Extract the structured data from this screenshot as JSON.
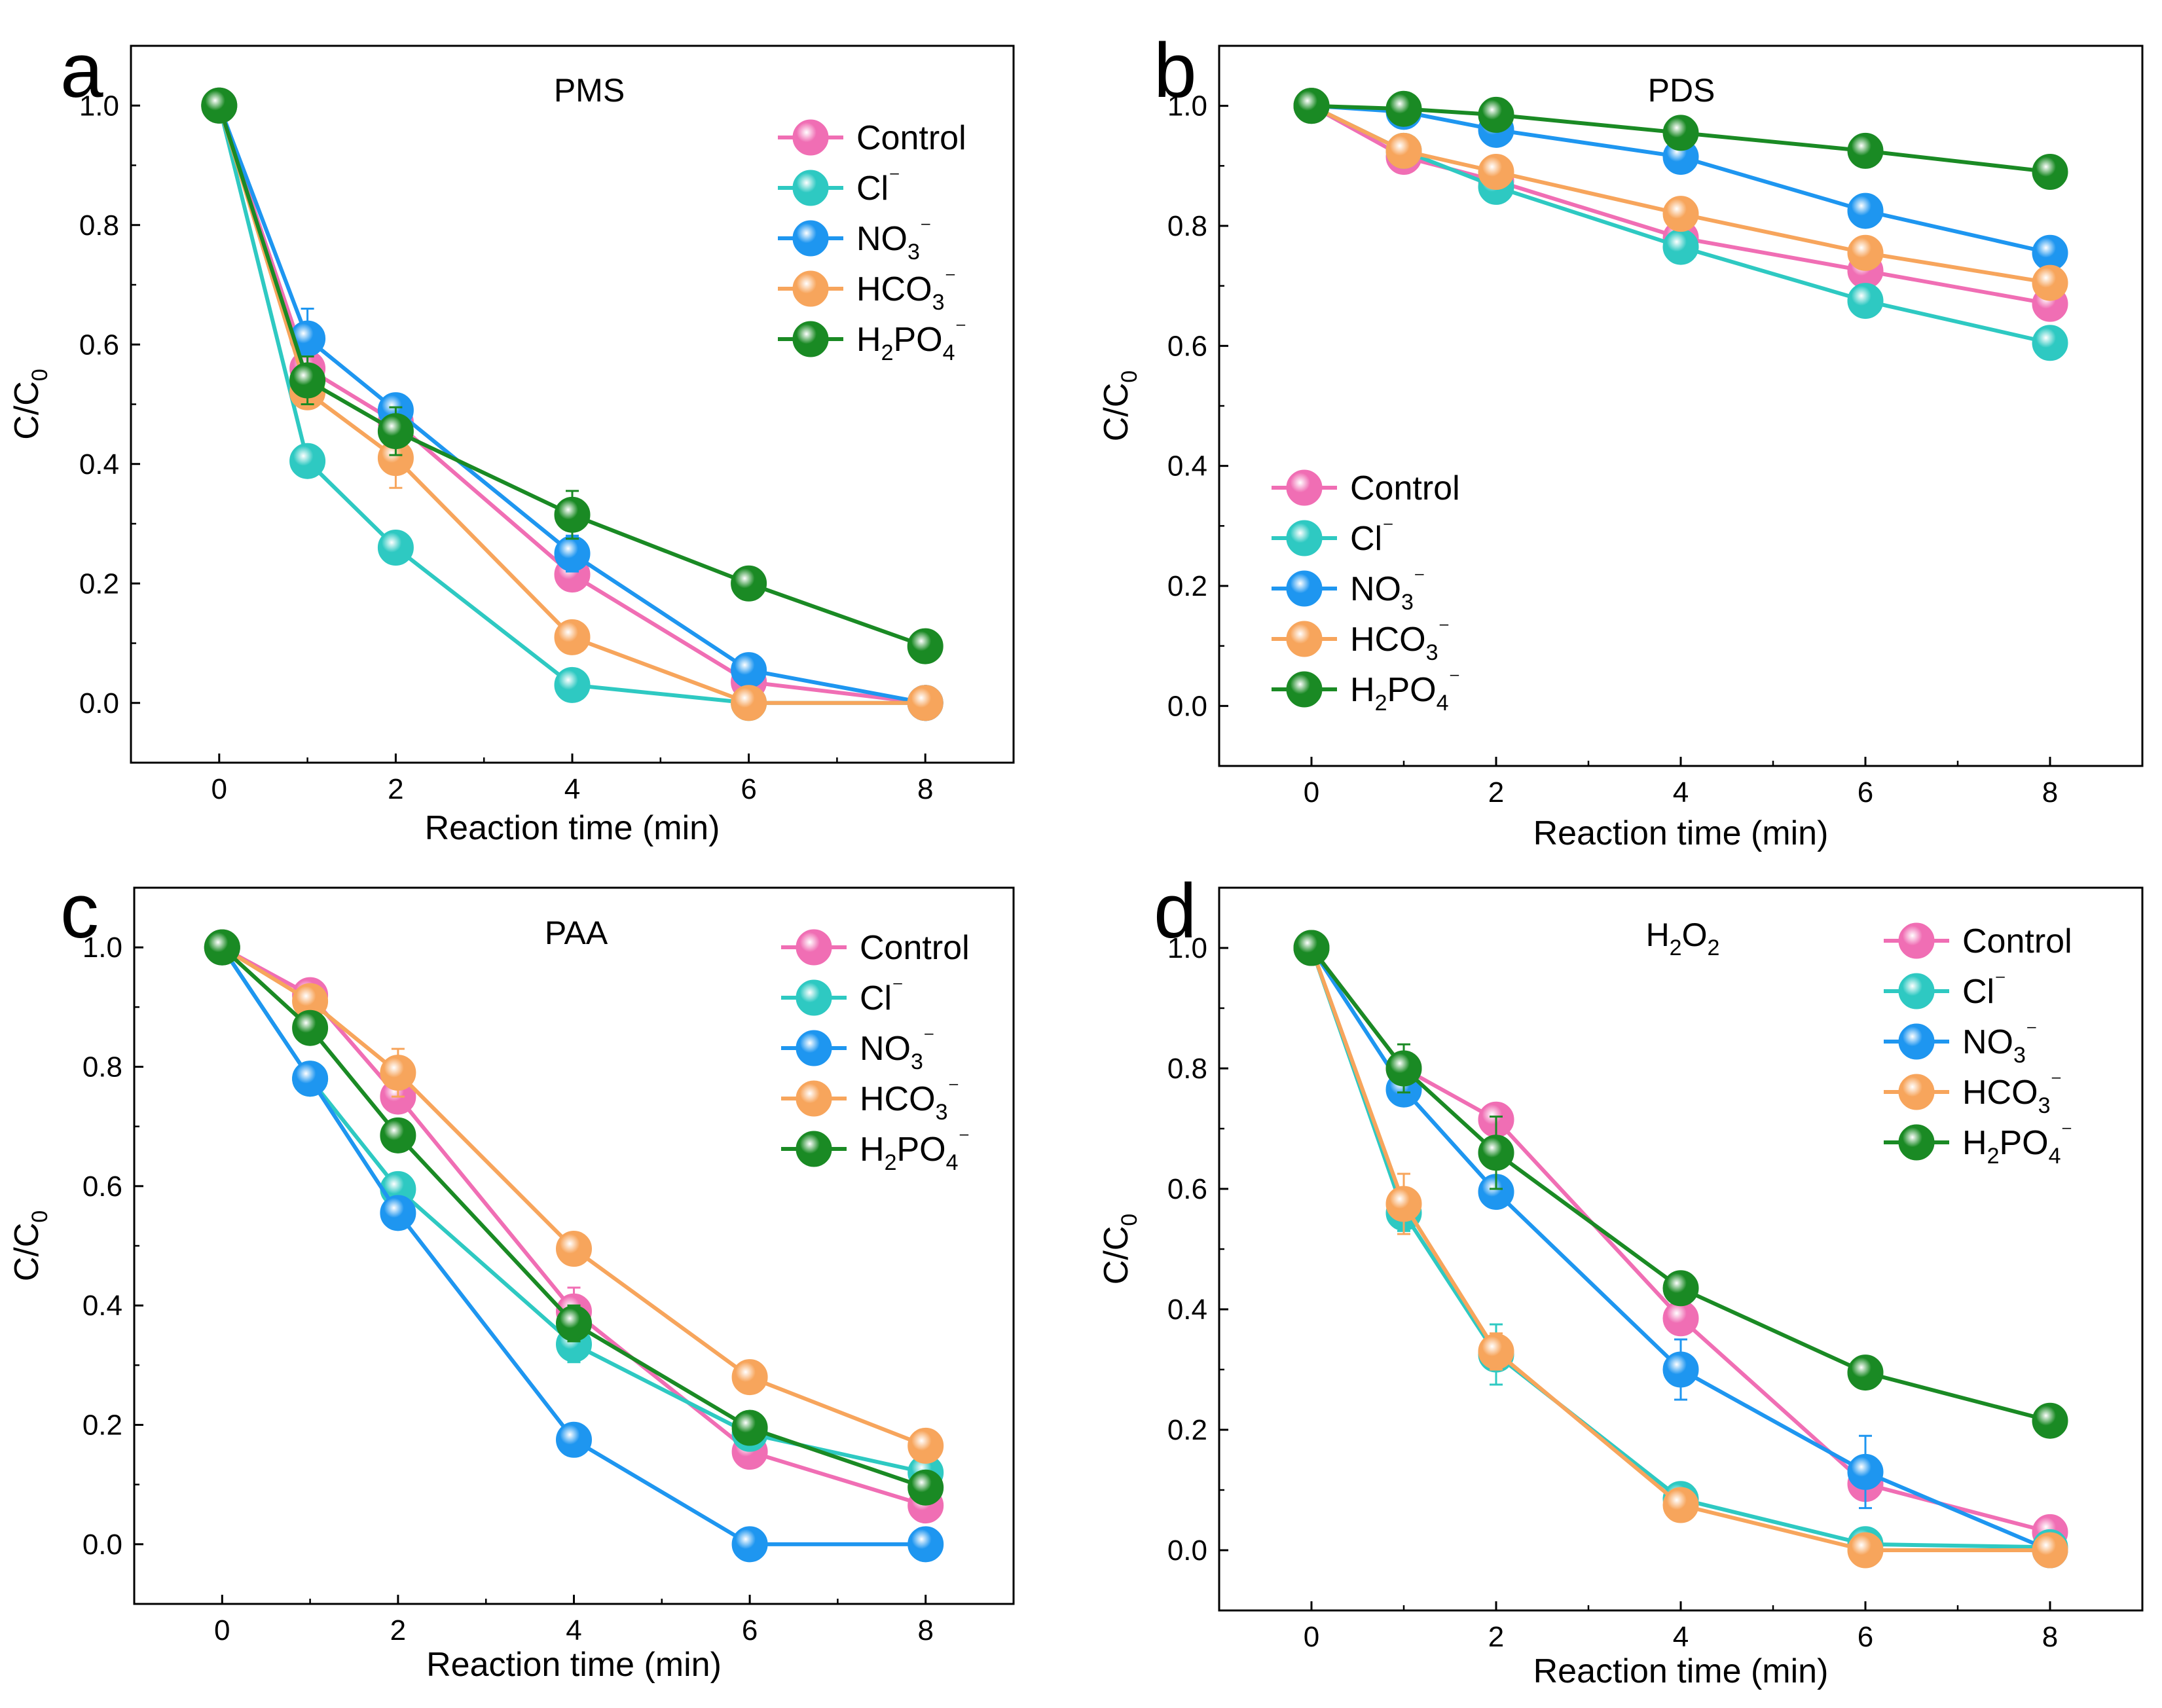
{
  "chart_data": [
    {
      "type": "line",
      "panel": "a",
      "title": "PMS",
      "xlabel": "Reaction time (min)",
      "ylabel": "C/C0",
      "ylabel_parts": [
        "C/C",
        "0"
      ],
      "xlim": [
        -1,
        9
      ],
      "ylim": [
        -0.1,
        1.1
      ],
      "xticks": [
        0,
        2,
        4,
        6,
        8
      ],
      "yticks": [
        0.0,
        0.2,
        0.4,
        0.6,
        0.8,
        1.0
      ],
      "legend_position": "top-right",
      "x": [
        0,
        1,
        2,
        4,
        6,
        8
      ],
      "series": [
        {
          "name": "Control",
          "label_parts": [
            [
              "Control",
              ""
            ]
          ],
          "color": "#f06eb4",
          "values": [
            1.0,
            0.56,
            0.47,
            0.215,
            0.035,
            0.0
          ],
          "errors": [
            0,
            0.02,
            0.02,
            0.02,
            0.01,
            0
          ]
        },
        {
          "name": "Cl⁻",
          "label_parts": [
            [
              "Cl",
              ""
            ],
            [
              "⁻",
              "sup"
            ]
          ],
          "color": "#2ec9c2",
          "values": [
            1.0,
            0.405,
            0.26,
            0.03,
            0.0,
            0.0
          ],
          "errors": [
            0,
            0.02,
            0.015,
            0.01,
            0.005,
            0
          ]
        },
        {
          "name": "NO3⁻",
          "label_parts": [
            [
              "NO",
              ""
            ],
            [
              "3",
              "sub"
            ],
            [
              "⁻",
              "sup"
            ]
          ],
          "color": "#1e96f0",
          "values": [
            1.0,
            0.61,
            0.49,
            0.25,
            0.055,
            0.0
          ],
          "errors": [
            0,
            0.05,
            0.02,
            0.03,
            0.01,
            0
          ]
        },
        {
          "name": "HCO3⁻",
          "label_parts": [
            [
              "HCO",
              ""
            ],
            [
              "3",
              "sub"
            ],
            [
              "⁻",
              "sup"
            ]
          ],
          "color": "#f7a55c",
          "values": [
            1.0,
            0.52,
            0.41,
            0.11,
            0.0,
            0.0
          ],
          "errors": [
            0,
            0.02,
            0.05,
            0.01,
            0.005,
            0
          ]
        },
        {
          "name": "H2PO4⁻",
          "label_parts": [
            [
              "H",
              ""
            ],
            [
              "2",
              "sub"
            ],
            [
              "PO",
              ""
            ],
            [
              "4",
              "sub"
            ],
            [
              "⁻",
              "sup"
            ]
          ],
          "color": "#1a8a24",
          "values": [
            1.0,
            0.54,
            0.455,
            0.315,
            0.2,
            0.095
          ],
          "errors": [
            0,
            0.04,
            0.04,
            0.04,
            0.01,
            0.01
          ]
        }
      ]
    },
    {
      "type": "line",
      "panel": "b",
      "title": "PDS",
      "xlabel": "Reaction time (min)",
      "ylabel": "C/C0",
      "ylabel_parts": [
        "C/C",
        "0"
      ],
      "xlim": [
        -1,
        9
      ],
      "ylim": [
        -0.1,
        1.1
      ],
      "xticks": [
        0,
        2,
        4,
        6,
        8
      ],
      "yticks": [
        0.0,
        0.2,
        0.4,
        0.6,
        0.8,
        1.0
      ],
      "legend_position": "bottom-left",
      "x": [
        0,
        1,
        2,
        4,
        6,
        8
      ],
      "series": [
        {
          "name": "Control",
          "label_parts": [
            [
              "Control",
              ""
            ]
          ],
          "color": "#f06eb4",
          "values": [
            1.0,
            0.915,
            0.875,
            0.78,
            0.725,
            0.67
          ],
          "errors": [
            0,
            0.01,
            0.01,
            0.01,
            0.01,
            0.01
          ]
        },
        {
          "name": "Cl⁻",
          "label_parts": [
            [
              "Cl",
              ""
            ],
            [
              "⁻",
              "sup"
            ]
          ],
          "color": "#2ec9c2",
          "values": [
            1.0,
            0.925,
            0.865,
            0.765,
            0.675,
            0.605
          ],
          "errors": [
            0,
            0.01,
            0.01,
            0.01,
            0.01,
            0.01
          ]
        },
        {
          "name": "NO3⁻",
          "label_parts": [
            [
              "NO",
              ""
            ],
            [
              "3",
              "sub"
            ],
            [
              "⁻",
              "sup"
            ]
          ],
          "color": "#1e96f0",
          "values": [
            1.0,
            0.99,
            0.96,
            0.915,
            0.825,
            0.755
          ],
          "errors": [
            0,
            0.01,
            0.01,
            0.01,
            0.01,
            0.01
          ]
        },
        {
          "name": "HCO3⁻",
          "label_parts": [
            [
              "HCO",
              ""
            ],
            [
              "3",
              "sub"
            ],
            [
              "⁻",
              "sup"
            ]
          ],
          "color": "#f7a55c",
          "values": [
            1.0,
            0.925,
            0.89,
            0.82,
            0.755,
            0.705
          ],
          "errors": [
            0,
            0.01,
            0.01,
            0.01,
            0.01,
            0.01
          ]
        },
        {
          "name": "H2PO4⁻",
          "label_parts": [
            [
              "H",
              ""
            ],
            [
              "2",
              "sub"
            ],
            [
              "PO",
              ""
            ],
            [
              "4",
              "sub"
            ],
            [
              "⁻",
              "sup"
            ]
          ],
          "color": "#1a8a24",
          "values": [
            1.0,
            0.995,
            0.985,
            0.955,
            0.925,
            0.89
          ],
          "errors": [
            0,
            0.01,
            0.01,
            0.01,
            0.01,
            0.01
          ]
        }
      ]
    },
    {
      "type": "line",
      "panel": "c",
      "title": "PAA",
      "xlabel": "Reaction time (min)",
      "ylabel": "C/C0",
      "ylabel_parts": [
        "C/C",
        "0"
      ],
      "xlim": [
        -1,
        9
      ],
      "ylim": [
        -0.1,
        1.1
      ],
      "xticks": [
        0,
        2,
        4,
        6,
        8
      ],
      "yticks": [
        0.0,
        0.2,
        0.4,
        0.6,
        0.8,
        1.0
      ],
      "legend_position": "top-right",
      "x": [
        0,
        1,
        2,
        4,
        6,
        8
      ],
      "series": [
        {
          "name": "Control",
          "label_parts": [
            [
              "Control",
              ""
            ]
          ],
          "color": "#f06eb4",
          "values": [
            1.0,
            0.92,
            0.75,
            0.39,
            0.155,
            0.065
          ],
          "errors": [
            0,
            0.01,
            0.02,
            0.04,
            0.01,
            0.01
          ]
        },
        {
          "name": "Cl⁻",
          "label_parts": [
            [
              "Cl",
              ""
            ],
            [
              "⁻",
              "sup"
            ]
          ],
          "color": "#2ec9c2",
          "values": [
            1.0,
            0.78,
            0.595,
            0.335,
            0.185,
            0.12
          ],
          "errors": [
            0,
            0.02,
            0.02,
            0.03,
            0.01,
            0.01
          ]
        },
        {
          "name": "NO3⁻",
          "label_parts": [
            [
              "NO",
              ""
            ],
            [
              "3",
              "sub"
            ],
            [
              "⁻",
              "sup"
            ]
          ],
          "color": "#1e96f0",
          "values": [
            1.0,
            0.78,
            0.555,
            0.175,
            0.0,
            0.0
          ],
          "errors": [
            0,
            0.02,
            0.02,
            0.02,
            0.005,
            0.005
          ]
        },
        {
          "name": "HCO3⁻",
          "label_parts": [
            [
              "HCO",
              ""
            ],
            [
              "3",
              "sub"
            ],
            [
              "⁻",
              "sup"
            ]
          ],
          "color": "#f7a55c",
          "values": [
            1.0,
            0.91,
            0.79,
            0.495,
            0.28,
            0.165
          ],
          "errors": [
            0,
            0.01,
            0.04,
            0.01,
            0.01,
            0.01
          ]
        },
        {
          "name": "H2PO4⁻",
          "label_parts": [
            [
              "H",
              ""
            ],
            [
              "2",
              "sub"
            ],
            [
              "PO",
              ""
            ],
            [
              "4",
              "sub"
            ],
            [
              "⁻",
              "sup"
            ]
          ],
          "color": "#1a8a24",
          "values": [
            1.0,
            0.865,
            0.685,
            0.37,
            0.195,
            0.095
          ],
          "errors": [
            0,
            0.02,
            0.02,
            0.03,
            0.01,
            0.01
          ]
        }
      ]
    },
    {
      "type": "line",
      "panel": "d",
      "title": "H2O2",
      "title_parts": [
        [
          "H",
          ""
        ],
        [
          "2",
          "sub"
        ],
        [
          "O",
          ""
        ],
        [
          "2",
          "sub"
        ]
      ],
      "xlabel": "Reaction time (min)",
      "ylabel": "C/C0",
      "ylabel_parts": [
        "C/C",
        "0"
      ],
      "xlim": [
        -1,
        9
      ],
      "ylim": [
        -0.1,
        1.1
      ],
      "xticks": [
        0,
        2,
        4,
        6,
        8
      ],
      "yticks": [
        0.0,
        0.2,
        0.4,
        0.6,
        0.8,
        1.0
      ],
      "legend_position": "top-right",
      "x": [
        0,
        1,
        2,
        4,
        6,
        8
      ],
      "series": [
        {
          "name": "Control",
          "label_parts": [
            [
              "Control",
              ""
            ]
          ],
          "color": "#f06eb4",
          "values": [
            1.0,
            0.8,
            0.715,
            0.385,
            0.11,
            0.03
          ],
          "errors": [
            0,
            0.02,
            0.02,
            0.02,
            0.02,
            0.01
          ]
        },
        {
          "name": "Cl⁻",
          "label_parts": [
            [
              "Cl",
              ""
            ],
            [
              "⁻",
              "sup"
            ]
          ],
          "color": "#2ec9c2",
          "values": [
            1.0,
            0.56,
            0.325,
            0.085,
            0.01,
            0.005
          ],
          "errors": [
            0,
            0.03,
            0.05,
            0.02,
            0.01,
            0.005
          ]
        },
        {
          "name": "NO3⁻",
          "label_parts": [
            [
              "NO",
              ""
            ],
            [
              "3",
              "sub"
            ],
            [
              "⁻",
              "sup"
            ]
          ],
          "color": "#1e96f0",
          "values": [
            1.0,
            0.765,
            0.595,
            0.3,
            0.13,
            0.0
          ],
          "errors": [
            0,
            0.02,
            0.02,
            0.05,
            0.06,
            0.01
          ]
        },
        {
          "name": "HCO3⁻",
          "label_parts": [
            [
              "HCO",
              ""
            ],
            [
              "3",
              "sub"
            ],
            [
              "⁻",
              "sup"
            ]
          ],
          "color": "#f7a55c",
          "values": [
            1.0,
            0.575,
            0.33,
            0.075,
            0.0,
            0.0
          ],
          "errors": [
            0,
            0.05,
            0.03,
            0.02,
            0.01,
            0.005
          ]
        },
        {
          "name": "H2PO4⁻",
          "label_parts": [
            [
              "H",
              ""
            ],
            [
              "2",
              "sub"
            ],
            [
              "PO",
              ""
            ],
            [
              "4",
              "sub"
            ],
            [
              "⁻",
              "sup"
            ]
          ],
          "color": "#1a8a24",
          "values": [
            1.0,
            0.8,
            0.66,
            0.435,
            0.295,
            0.215
          ],
          "errors": [
            0,
            0.04,
            0.06,
            0.02,
            0.02,
            0.01
          ]
        }
      ]
    }
  ]
}
